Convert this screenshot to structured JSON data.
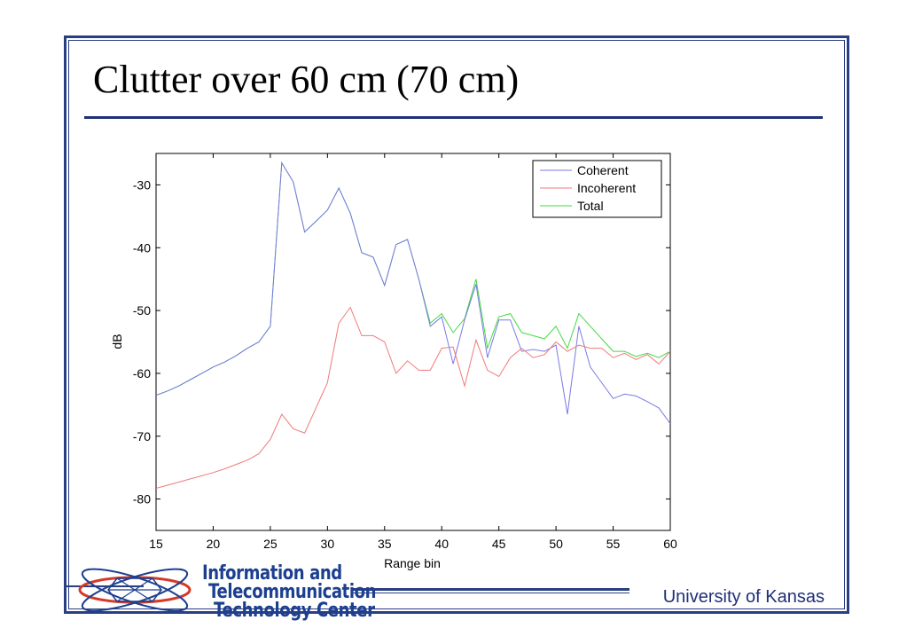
{
  "slide": {
    "title": "Clutter over 60 cm (70 cm)",
    "footer": "University of Kansas",
    "logo_lines": [
      "Information and",
      "Telecommunication",
      "Technology Center"
    ]
  },
  "colors": {
    "frame": "#2a3e82",
    "coherent": "#7a7ae6",
    "incoherent": "#f07a7a",
    "total": "#46d846"
  },
  "chart_data": {
    "type": "line",
    "xlabel": "Range bin",
    "ylabel": "dB",
    "xlim": [
      15,
      60
    ],
    "ylim": [
      -85,
      -25
    ],
    "xticks": [
      15,
      20,
      25,
      30,
      35,
      40,
      45,
      50,
      55,
      60
    ],
    "yticks": [
      -30,
      -40,
      -50,
      -60,
      -70,
      -80
    ],
    "legend_position": "top-right",
    "series": [
      {
        "name": "Coherent",
        "color": "#7a7ae6",
        "x": [
          15,
          16,
          17,
          18,
          19,
          20,
          21,
          22,
          23,
          24,
          25,
          26,
          27,
          28,
          29,
          30,
          31,
          32,
          33,
          34,
          35,
          36,
          37,
          38,
          39,
          40,
          41,
          42,
          43,
          44,
          45,
          46,
          47,
          48,
          49,
          50,
          51,
          52,
          53,
          54,
          55,
          56,
          57,
          58,
          59,
          60
        ],
        "y": [
          -63.5,
          -62.8,
          -62,
          -61,
          -60,
          -59,
          -58.2,
          -57.2,
          -56,
          -55,
          -52.5,
          -26.5,
          -29.5,
          -37.5,
          -35.8,
          -34,
          -30.5,
          -34.5,
          -40.8,
          -41.5,
          -46,
          -39.5,
          -38.7,
          -45,
          -52.5,
          -51,
          -58.5,
          -51.5,
          -45.8,
          -57.5,
          -51.5,
          -51.5,
          -56.5,
          -56.2,
          -56.5,
          -55.5,
          -66.5,
          -52.5,
          -59,
          -61.5,
          -64,
          -63.3,
          -63.6,
          -64.5,
          -65.5,
          -68
        ]
      },
      {
        "name": "Incoherent",
        "color": "#f07a7a",
        "x": [
          15,
          16,
          17,
          18,
          19,
          20,
          21,
          22,
          23,
          24,
          25,
          26,
          27,
          28,
          29,
          30,
          31,
          32,
          33,
          34,
          35,
          36,
          37,
          38,
          39,
          40,
          41,
          42,
          43,
          44,
          45,
          46,
          47,
          48,
          49,
          50,
          51,
          52,
          53,
          54,
          55,
          56,
          57,
          58,
          59,
          60
        ],
        "y": [
          -78.3,
          -77.8,
          -77.3,
          -76.8,
          -76.3,
          -75.8,
          -75.2,
          -74.5,
          -73.8,
          -72.8,
          -70.5,
          -66.5,
          -68.8,
          -69.5,
          -65.5,
          -61.5,
          -52,
          -49.5,
          -54,
          -54,
          -55,
          -60,
          -58,
          -59.5,
          -59.5,
          -56,
          -55.8,
          -62,
          -54.7,
          -59.5,
          -60.5,
          -57.5,
          -56,
          -57.5,
          -57,
          -55,
          -56.5,
          -55.5,
          -56,
          -56,
          -57.5,
          -56.8,
          -57.8,
          -57,
          -58.5,
          -56.5
        ]
      },
      {
        "name": "Total",
        "color": "#46d846",
        "x": [
          15,
          16,
          17,
          18,
          19,
          20,
          21,
          22,
          23,
          24,
          25,
          26,
          27,
          28,
          29,
          30,
          31,
          32,
          33,
          34,
          35,
          36,
          37,
          38,
          39,
          40,
          41,
          42,
          43,
          44,
          45,
          46,
          47,
          48,
          49,
          50,
          51,
          52,
          53,
          54,
          55,
          56,
          57,
          58,
          59,
          60
        ],
        "y": [
          -63.5,
          -62.8,
          -62,
          -61,
          -60,
          -59,
          -58.2,
          -57.2,
          -56,
          -55,
          -52.5,
          -26.5,
          -29.5,
          -37.5,
          -35.8,
          -34,
          -30.5,
          -34.5,
          -40.8,
          -41.5,
          -46,
          -39.5,
          -38.7,
          -45,
          -52,
          -50.5,
          -53.5,
          -51.3,
          -45,
          -56,
          -51,
          -50.5,
          -53.5,
          -54,
          -54.5,
          -52.5,
          -56,
          -50.5,
          -52.5,
          -54.5,
          -56.5,
          -56.5,
          -57.3,
          -56.8,
          -57.5,
          -56.5
        ]
      }
    ]
  }
}
